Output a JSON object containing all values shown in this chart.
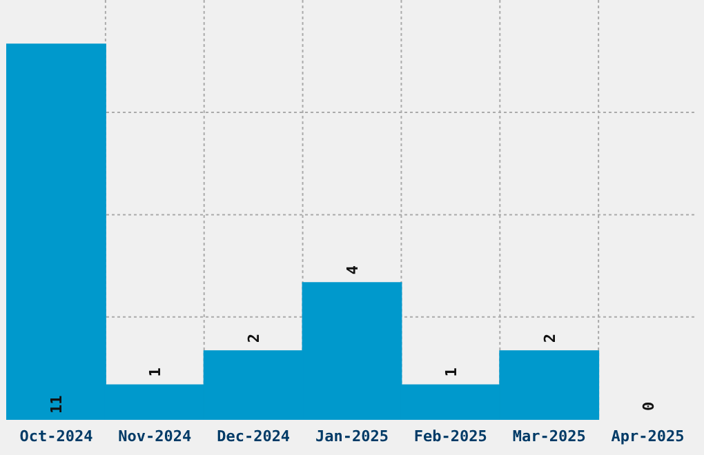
{
  "chart_data": {
    "type": "bar",
    "categories": [
      "Oct-2024",
      "Nov-2024",
      "Dec-2024",
      "Jan-2025",
      "Feb-2025",
      "Mar-2025",
      "Apr-2025"
    ],
    "values": [
      11,
      1,
      2,
      4,
      1,
      2,
      0
    ],
    "color": "#0099cc",
    "data_labels": true,
    "grid": true,
    "tick_labels": "x",
    "ylim": [
      0,
      12.3
    ],
    "yticks": [
      {
        "value": 3,
        "label": null
      },
      {
        "value": 6,
        "label": null
      },
      {
        "value": 9,
        "label": null
      }
    ]
  }
}
